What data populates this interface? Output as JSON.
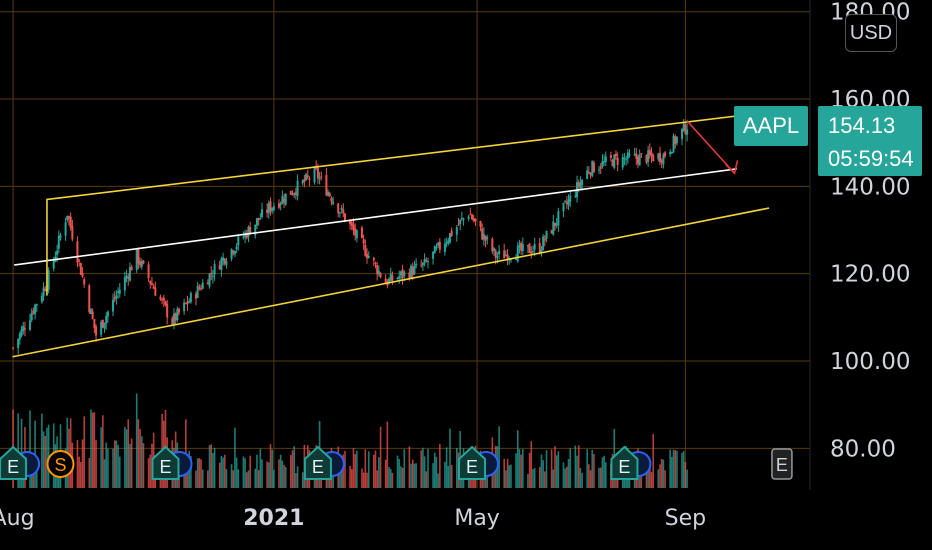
{
  "currency": "USD",
  "symbol": "AAPL",
  "last_price": "154.13",
  "countdown": "05:59:54",
  "earnings_marker": "E",
  "split_marker": "S",
  "colors": {
    "background": "#000000",
    "grid": "#5a3a08",
    "up": "#26a69a",
    "down": "#ef5350",
    "channel": "#f2d33b",
    "midline": "#ffffff",
    "arrow": "#e53935",
    "badge_earnings": "#26a69a",
    "badge_split": "#ff9800"
  },
  "chart_data": {
    "type": "candlestick",
    "y_axis_labels": [
      "180.00",
      "160.00",
      "140.00",
      "120.00",
      "100.00",
      "80.00"
    ],
    "x_axis_labels": [
      {
        "label": "Aug",
        "bold": false
      },
      {
        "label": "2021",
        "bold": true
      },
      {
        "label": "May",
        "bold": false
      },
      {
        "label": "Sep",
        "bold": false
      }
    ],
    "ylim": [
      75,
      183
    ],
    "price_path": [
      {
        "date": "2020-07-31",
        "price": 103
      },
      {
        "date": "2020-08-20",
        "price": 118
      },
      {
        "date": "2020-09-01",
        "price": 134
      },
      {
        "date": "2020-09-18",
        "price": 106
      },
      {
        "date": "2020-10-12",
        "price": 124
      },
      {
        "date": "2020-11-02",
        "price": 109
      },
      {
        "date": "2020-12-01",
        "price": 123
      },
      {
        "date": "2020-12-29",
        "price": 135
      },
      {
        "date": "2021-01-26",
        "price": 143
      },
      {
        "date": "2021-02-10",
        "price": 134
      },
      {
        "date": "2021-03-08",
        "price": 118
      },
      {
        "date": "2021-03-31",
        "price": 122
      },
      {
        "date": "2021-04-26",
        "price": 134
      },
      {
        "date": "2021-05-12",
        "price": 124
      },
      {
        "date": "2021-06-07",
        "price": 126
      },
      {
        "date": "2021-07-06",
        "price": 144
      },
      {
        "date": "2021-07-20",
        "price": 146
      },
      {
        "date": "2021-08-19",
        "price": 147
      },
      {
        "date": "2021-09-02",
        "price": 154
      }
    ],
    "drawings": {
      "channel_upper": {
        "from": {
          "date": "2020-08-20",
          "price": 137
        },
        "to": {
          "date": "2021-10-20",
          "price": 157
        }
      },
      "channel_lower": {
        "from": {
          "date": "2020-07-31",
          "price": 101
        },
        "to": {
          "date": "2021-10-20",
          "price": 135
        }
      },
      "midline": {
        "from": {
          "date": "2020-08-01",
          "price": 122
        },
        "to": {
          "date": "2021-10-01",
          "price": 144
        }
      },
      "arrow": {
        "from": {
          "date": "2021-09-02",
          "price": 155
        },
        "to": {
          "date": "2021-09-30",
          "price": 143
        }
      }
    },
    "event_badges": [
      {
        "date": "2020-07-31",
        "type": "E"
      },
      {
        "date": "2020-08-28",
        "type": "S"
      },
      {
        "date": "2020-10-29",
        "type": "E"
      },
      {
        "date": "2021-01-27",
        "type": "E"
      },
      {
        "date": "2021-04-28",
        "type": "E"
      },
      {
        "date": "2021-07-27",
        "type": "E"
      },
      {
        "date": "2021-10-28",
        "type": "E",
        "upcoming": true
      }
    ]
  }
}
